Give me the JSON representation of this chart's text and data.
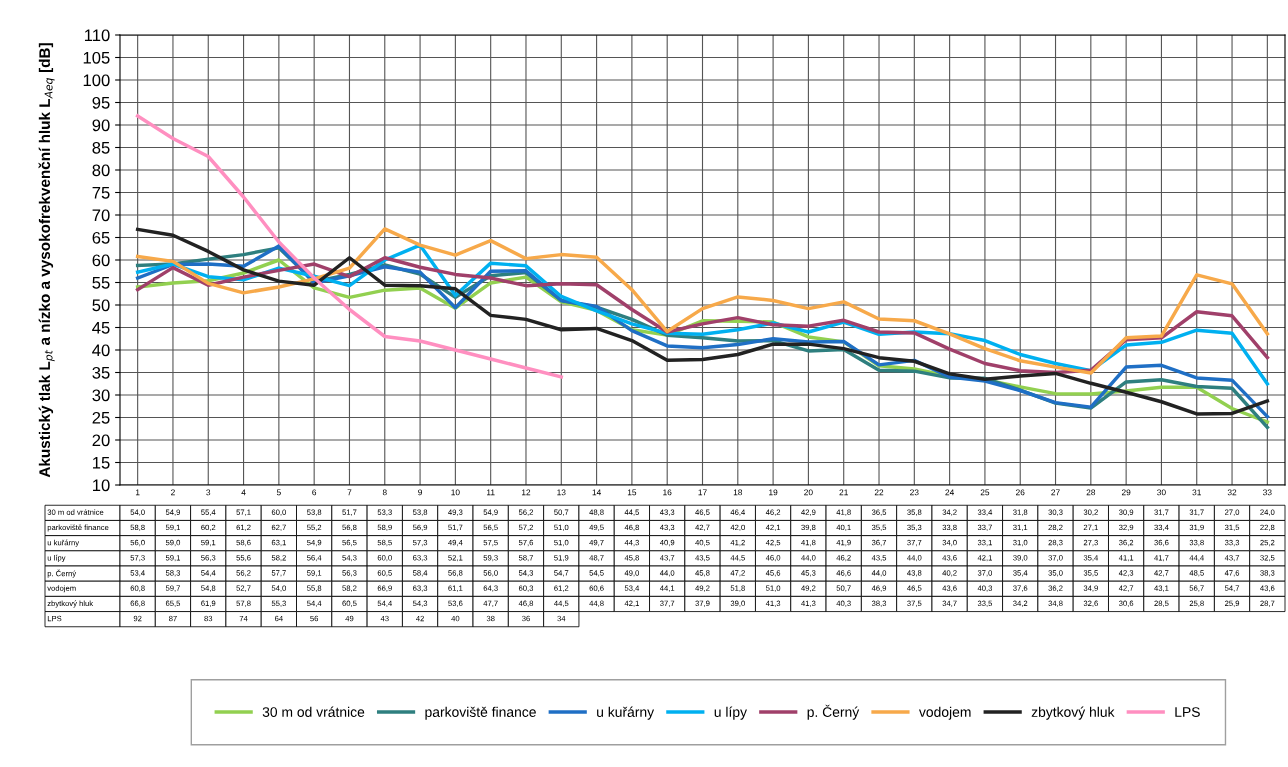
{
  "chart_data": {
    "type": "line",
    "ylabel": "Akustický tlak L$_{pt}$ a nízko a vysokofrekvenční hluk L$_{Aeq}$ [dB]",
    "categories": [
      "1",
      "2",
      "3",
      "4",
      "5",
      "6",
      "7",
      "8",
      "9",
      "10",
      "11",
      "12",
      "13",
      "14",
      "15",
      "16",
      "17",
      "18",
      "19",
      "20",
      "21",
      "22",
      "23",
      "24",
      "25",
      "26",
      "27",
      "28",
      "29",
      "30",
      "31",
      "32",
      "33"
    ],
    "ylim": [
      10,
      110
    ],
    "yticks": [
      10,
      15,
      20,
      25,
      30,
      35,
      40,
      45,
      50,
      55,
      60,
      65,
      70,
      75,
      80,
      85,
      90,
      95,
      100,
      105,
      110
    ],
    "grid": true,
    "legend": "bottom",
    "marker": "none",
    "line_style": "solid",
    "series": [
      {
        "name": "30 m od vrátnice",
        "color": "#92d050",
        "values": [
          54.0,
          54.9,
          55.4,
          57.1,
          60.0,
          53.8,
          51.7,
          53.3,
          53.8,
          49.3,
          54.9,
          56.2,
          50.7,
          48.8,
          44.5,
          43.3,
          46.5,
          46.4,
          46.2,
          42.9,
          41.8,
          36.5,
          35.8,
          34.2,
          33.4,
          31.8,
          30.3,
          30.2,
          30.9,
          31.7,
          31.7,
          27.0,
          24.0
        ],
        "value_labels": [
          "54,0",
          "54,9",
          "55,4",
          "57,1",
          "60,0",
          "53,8",
          "51,7",
          "53,3",
          "53,8",
          "49,3",
          "54,9",
          "56,2",
          "50,7",
          "48,8",
          "44,5",
          "43,3",
          "46,5",
          "46,4",
          "46,2",
          "42,9",
          "41,8",
          "36,5",
          "35,8",
          "34,2",
          "33,4",
          "31,8",
          "30,3",
          "30,2",
          "30,9",
          "31,7",
          "31,7",
          "27,0",
          "24,0"
        ]
      },
      {
        "name": "parkoviště finance",
        "color": "#2e7f7f",
        "values": [
          58.8,
          59.1,
          60.2,
          61.2,
          62.7,
          55.2,
          56.8,
          58.9,
          56.9,
          51.7,
          56.5,
          57.2,
          51.0,
          49.5,
          46.8,
          43.3,
          42.7,
          42.0,
          42.1,
          39.8,
          40.1,
          35.5,
          35.3,
          33.8,
          33.7,
          31.1,
          28.2,
          27.1,
          32.9,
          33.4,
          31.9,
          31.5,
          22.8
        ],
        "value_labels": [
          "58,8",
          "59,1",
          "60,2",
          "61,2",
          "62,7",
          "55,2",
          "56,8",
          "58,9",
          "56,9",
          "51,7",
          "56,5",
          "57,2",
          "51,0",
          "49,5",
          "46,8",
          "43,3",
          "42,7",
          "42,0",
          "42,1",
          "39,8",
          "40,1",
          "35,5",
          "35,3",
          "33,8",
          "33,7",
          "31,1",
          "28,2",
          "27,1",
          "32,9",
          "33,4",
          "31,9",
          "31,5",
          "22,8"
        ]
      },
      {
        "name": "u kuřárny",
        "color": "#1f6fc5",
        "values": [
          56.0,
          59.0,
          59.1,
          58.6,
          63.1,
          54.9,
          56.5,
          58.5,
          57.3,
          49.4,
          57.5,
          57.6,
          51.0,
          49.7,
          44.3,
          40.9,
          40.5,
          41.2,
          42.5,
          41.8,
          41.9,
          36.7,
          37.7,
          34.0,
          33.1,
          31.0,
          28.3,
          27.3,
          36.2,
          36.6,
          33.8,
          33.3,
          25.2
        ],
        "value_labels": [
          "56,0",
          "59,0",
          "59,1",
          "58,6",
          "63,1",
          "54,9",
          "56,5",
          "58,5",
          "57,3",
          "49,4",
          "57,5",
          "57,6",
          "51,0",
          "49,7",
          "44,3",
          "40,9",
          "40,5",
          "41,2",
          "42,5",
          "41,8",
          "41,9",
          "36,7",
          "37,7",
          "34,0",
          "33,1",
          "31,0",
          "28,3",
          "27,3",
          "36,2",
          "36,6",
          "33,8",
          "33,3",
          "25,2"
        ]
      },
      {
        "name": "u lípy",
        "color": "#00b0f0",
        "values": [
          57.3,
          59.1,
          56.3,
          55.6,
          58.2,
          56.4,
          54.3,
          60.0,
          63.3,
          52.1,
          59.3,
          58.7,
          51.9,
          48.7,
          45.8,
          43.7,
          43.5,
          44.5,
          46.0,
          44.0,
          46.2,
          43.5,
          44.0,
          43.6,
          42.1,
          39.0,
          37.0,
          35.4,
          41.1,
          41.7,
          44.4,
          43.7,
          32.5
        ],
        "value_labels": [
          "57,3",
          "59,1",
          "56,3",
          "55,6",
          "58,2",
          "56,4",
          "54,3",
          "60,0",
          "63,3",
          "52,1",
          "59,3",
          "58,7",
          "51,9",
          "48,7",
          "45,8",
          "43,7",
          "43,5",
          "44,5",
          "46,0",
          "44,0",
          "46,2",
          "43,5",
          "44,0",
          "43,6",
          "42,1",
          "39,0",
          "37,0",
          "35,4",
          "41,1",
          "41,7",
          "44,4",
          "43,7",
          "32,5"
        ]
      },
      {
        "name": "p. Černý",
        "color": "#a0406a",
        "values": [
          53.4,
          58.3,
          54.4,
          56.2,
          57.7,
          59.1,
          56.3,
          60.5,
          58.4,
          56.8,
          56.0,
          54.3,
          54.7,
          54.5,
          49.0,
          44.0,
          45.8,
          47.2,
          45.6,
          45.3,
          46.6,
          44.0,
          43.8,
          40.2,
          37.0,
          35.4,
          35.0,
          35.5,
          42.3,
          42.7,
          48.5,
          47.6,
          38.3
        ],
        "value_labels": [
          "53,4",
          "58,3",
          "54,4",
          "56,2",
          "57,7",
          "59,1",
          "56,3",
          "60,5",
          "58,4",
          "56,8",
          "56,0",
          "54,3",
          "54,7",
          "54,5",
          "49,0",
          "44,0",
          "45,8",
          "47,2",
          "45,6",
          "45,3",
          "46,6",
          "44,0",
          "43,8",
          "40,2",
          "37,0",
          "35,4",
          "35,0",
          "35,5",
          "42,3",
          "42,7",
          "48,5",
          "47,6",
          "38,3"
        ]
      },
      {
        "name": "vodojem",
        "color": "#f7a94a",
        "values": [
          60.8,
          59.7,
          54.8,
          52.7,
          54.0,
          55.8,
          58.2,
          66.9,
          63.3,
          61.1,
          64.3,
          60.3,
          61.2,
          60.6,
          53.4,
          44.1,
          49.2,
          51.8,
          51.0,
          49.2,
          50.7,
          46.9,
          46.5,
          43.6,
          40.3,
          37.6,
          36.2,
          34.9,
          42.7,
          43.1,
          56.7,
          54.7,
          43.6
        ],
        "value_labels": [
          "60,8",
          "59,7",
          "54,8",
          "52,7",
          "54,0",
          "55,8",
          "58,2",
          "66,9",
          "63,3",
          "61,1",
          "64,3",
          "60,3",
          "61,2",
          "60,6",
          "53,4",
          "44,1",
          "49,2",
          "51,8",
          "51,0",
          "49,2",
          "50,7",
          "46,9",
          "46,5",
          "43,6",
          "40,3",
          "37,6",
          "36,2",
          "34,9",
          "42,7",
          "43,1",
          "56,7",
          "54,7",
          "43,6"
        ]
      },
      {
        "name": "zbytkový hluk",
        "color": "#222222",
        "values": [
          66.8,
          65.5,
          61.9,
          57.8,
          55.3,
          54.4,
          60.5,
          54.4,
          54.3,
          53.6,
          47.7,
          46.8,
          44.5,
          44.8,
          42.1,
          37.7,
          37.9,
          39.0,
          41.3,
          41.3,
          40.3,
          38.3,
          37.5,
          34.7,
          33.5,
          34.2,
          34.8,
          32.6,
          30.6,
          28.5,
          25.8,
          25.9,
          28.7
        ],
        "value_labels": [
          "66,8",
          "65,5",
          "61,9",
          "57,8",
          "55,3",
          "54,4",
          "60,5",
          "54,4",
          "54,3",
          "53,6",
          "47,7",
          "46,8",
          "44,5",
          "44,8",
          "42,1",
          "37,7",
          "37,9",
          "39,0",
          "41,3",
          "41,3",
          "40,3",
          "38,3",
          "37,5",
          "34,7",
          "33,5",
          "34,2",
          "34,8",
          "32,6",
          "30,6",
          "28,5",
          "25,8",
          "25,9",
          "28,7"
        ]
      },
      {
        "name": "LPS",
        "color": "#ff8fc0",
        "values": [
          92,
          87,
          83,
          74,
          64,
          56,
          49,
          43,
          42,
          40,
          38,
          36,
          34,
          null,
          null,
          null,
          null,
          null,
          null,
          null,
          null,
          null,
          null,
          null,
          null,
          null,
          null,
          null,
          null,
          null,
          null,
          null,
          null
        ],
        "value_labels": [
          "92",
          "87",
          "83",
          "74",
          "64",
          "56",
          "49",
          "43",
          "42",
          "40",
          "38",
          "36",
          "34",
          null,
          null,
          null,
          null,
          null,
          null,
          null,
          null,
          null,
          null,
          null,
          null,
          null,
          null,
          null,
          null,
          null,
          null,
          null,
          null
        ]
      }
    ]
  }
}
